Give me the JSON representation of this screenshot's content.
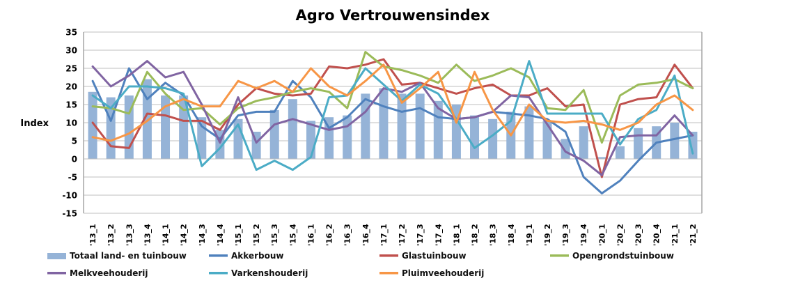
{
  "title": "Agro Vertrouwensindex",
  "y_axis": {
    "label": "Index",
    "min": -15,
    "max": 35,
    "step": 5,
    "ticks": [
      "35",
      "30",
      "25",
      "20",
      "15",
      "10",
      "5",
      "0",
      "-5",
      "-10",
      "-15"
    ]
  },
  "chart_data": {
    "type": "bar",
    "subtype": "combo-bar-lines",
    "title": "Agro Vertrouwensindex",
    "xlabel": "",
    "ylabel": "Index",
    "ylim": [
      -15,
      35
    ],
    "grid": true,
    "legend_position": "bottom",
    "categories": [
      "'13_1",
      "'13_2",
      "'13_3",
      "'13_4",
      "'14_1",
      "'14_2",
      "'14_3",
      "'14_4",
      "'15_1",
      "'15_2",
      "'15_3",
      "'15_4",
      "'16_1",
      "'16_2",
      "'16_3",
      "'16_4",
      "'17_1",
      "'17_2",
      "'17_3",
      "'17_4",
      "'18_1",
      "'18_2",
      "'18_3",
      "'18_4",
      "'19_1",
      "'19_2",
      "'19_3",
      "'19_4",
      "'20_1",
      "'20_2",
      "'20_3",
      "'20_4",
      "'21_1",
      "'21_2"
    ],
    "bar_series": {
      "name": "Totaal land- en tuinbouw",
      "color": "#95B3D7",
      "values": [
        18.5,
        17,
        17.5,
        22,
        17.5,
        17.5,
        11.5,
        8,
        11,
        7.5,
        13.5,
        16.5,
        10.5,
        11.5,
        12,
        18,
        19.5,
        18,
        18,
        16,
        15,
        12,
        11,
        13,
        14.5,
        10.5,
        5.5,
        9,
        0.5,
        3.5,
        8.5,
        9,
        10,
        7.5
      ]
    },
    "line_series": [
      {
        "name": "Akkerbouw",
        "color": "#4F81BD",
        "values": [
          21.5,
          10.5,
          25,
          16.5,
          21,
          17.5,
          9,
          5.5,
          12,
          13,
          13,
          21.5,
          17,
          8.5,
          11.5,
          16.5,
          14.5,
          13,
          14,
          11.5,
          11,
          11.5,
          13,
          12.5,
          12,
          11,
          7.5,
          -5,
          -9.5,
          -6,
          -0.5,
          4.5,
          5.5,
          6.5
        ]
      },
      {
        "name": "Glastuinbouw",
        "color": "#C0504D",
        "values": [
          10,
          3.5,
          3,
          12.5,
          12,
          10.5,
          10.5,
          8,
          15,
          19.5,
          18,
          17.5,
          18,
          25.5,
          25,
          26,
          27.5,
          20.5,
          21,
          19.5,
          18,
          19.5,
          20.5,
          17.5,
          17.5,
          19.5,
          14.5,
          15,
          -5,
          15,
          16.5,
          17,
          26,
          19.5
        ]
      },
      {
        "name": "Opengrondstuinbouw",
        "color": "#9BBB59",
        "values": [
          14.5,
          14,
          12.5,
          24,
          18,
          13.5,
          14,
          9.5,
          14,
          16,
          17,
          18.5,
          19.5,
          18.5,
          14,
          29.5,
          25.5,
          24.5,
          23,
          21,
          26,
          21.5,
          23,
          25,
          22.5,
          14,
          13.5,
          19,
          4.5,
          17.5,
          20.5,
          21,
          22,
          19.5
        ]
      },
      {
        "name": "Melkveehouderij",
        "color": "#8064A2",
        "values": [
          25.5,
          20,
          23,
          27,
          22.5,
          24,
          15,
          4.5,
          17,
          4.5,
          9.5,
          11,
          9.5,
          8,
          9,
          13,
          19.5,
          18.5,
          21,
          14,
          11,
          11.5,
          13,
          17.5,
          17,
          9.5,
          2,
          -0.5,
          -4.5,
          6,
          6.5,
          6.5,
          12,
          6.5
        ]
      },
      {
        "name": "Varkenshouderij",
        "color": "#4BACC6",
        "values": [
          17.5,
          14,
          20,
          20,
          19.5,
          18,
          -2,
          3,
          9.5,
          -3,
          -0.5,
          -3,
          0.5,
          17,
          17.5,
          25,
          20.5,
          16,
          20.5,
          18,
          11,
          3,
          6.5,
          10.5,
          27,
          12.5,
          12.5,
          12.5,
          12.5,
          4,
          11,
          13.5,
          23,
          1.5
        ]
      },
      {
        "name": "Pluimveehouderij",
        "color": "#F79646",
        "values": [
          6,
          5,
          7,
          10.5,
          14.5,
          16.5,
          14.5,
          14.5,
          21.5,
          19.5,
          21.5,
          18.5,
          25,
          20,
          17.5,
          21.5,
          26,
          15.5,
          19.5,
          24,
          10,
          24,
          13.5,
          6.5,
          15,
          10.5,
          10,
          10.5,
          9.5,
          8,
          10,
          15,
          17.5,
          13.5
        ]
      }
    ],
    "gridline_color": "#BFBFBF",
    "plot_frame_color": "#A6A6A6"
  }
}
